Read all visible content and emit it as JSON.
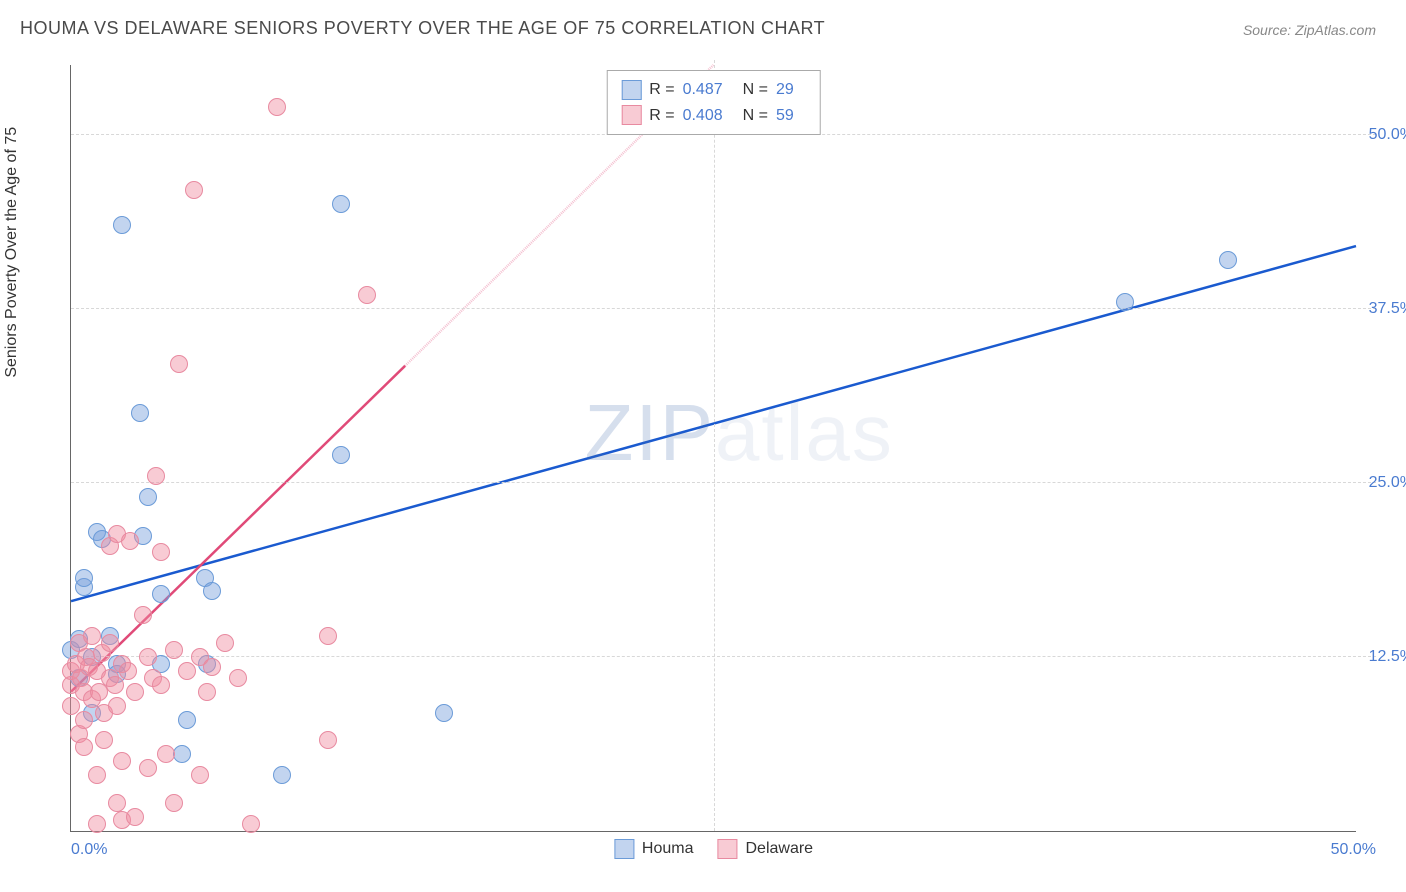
{
  "title": "HOUMA VS DELAWARE SENIORS POVERTY OVER THE AGE OF 75 CORRELATION CHART",
  "source": "Source: ZipAtlas.com",
  "y_axis_label": "Seniors Poverty Over the Age of 75",
  "watermark": {
    "bold": "ZIP",
    "light": "atlas"
  },
  "chart": {
    "type": "scatter",
    "xlim": [
      0,
      50
    ],
    "ylim": [
      0,
      55
    ],
    "x_ticks": [
      {
        "value": 0,
        "label": "0.0%",
        "pos": "left"
      },
      {
        "value": 50,
        "label": "50.0%",
        "pos": "right"
      }
    ],
    "y_ticks": [
      {
        "value": 12.5,
        "label": "12.5%"
      },
      {
        "value": 25.0,
        "label": "25.0%"
      },
      {
        "value": 37.5,
        "label": "37.5%"
      },
      {
        "value": 50.0,
        "label": "50.0%"
      }
    ],
    "v_grid_positions": [
      25
    ],
    "background_color": "#ffffff",
    "grid_color": "#d8d8d8",
    "point_radius": 9,
    "series": [
      {
        "name": "Houma",
        "fill_color": "rgba(120,160,220,0.45)",
        "stroke_color": "#6b9bd8",
        "trend": {
          "x1": 0,
          "y1": 16.5,
          "x2": 50,
          "y2": 42.0,
          "color": "#1a5acf",
          "width": 2.5,
          "dash_after_x": null
        },
        "points": [
          [
            0.0,
            13.0
          ],
          [
            0.3,
            13.8
          ],
          [
            0.3,
            11.0
          ],
          [
            0.5,
            17.5
          ],
          [
            0.5,
            18.2
          ],
          [
            0.8,
            12.5
          ],
          [
            0.8,
            8.5
          ],
          [
            1.0,
            21.5
          ],
          [
            1.2,
            21.0
          ],
          [
            1.5,
            14.0
          ],
          [
            1.8,
            12.0
          ],
          [
            1.8,
            11.3
          ],
          [
            2.0,
            43.5
          ],
          [
            2.7,
            30.0
          ],
          [
            2.8,
            21.2
          ],
          [
            3.0,
            24.0
          ],
          [
            3.5,
            12.0
          ],
          [
            3.5,
            17.0
          ],
          [
            4.3,
            5.5
          ],
          [
            4.5,
            8.0
          ],
          [
            5.2,
            18.2
          ],
          [
            5.3,
            12.0
          ],
          [
            5.5,
            17.2
          ],
          [
            8.2,
            4.0
          ],
          [
            10.5,
            45.0
          ],
          [
            10.5,
            27.0
          ],
          [
            14.5,
            8.5
          ],
          [
            41.0,
            38.0
          ],
          [
            45.0,
            41.0
          ]
        ]
      },
      {
        "name": "Delaware",
        "fill_color": "rgba(240,140,160,0.45)",
        "stroke_color": "#e88aa0",
        "trend": {
          "x1": 0,
          "y1": 10.0,
          "x2": 25,
          "y2": 55.0,
          "color": "#e04a78",
          "width": 2.5,
          "dash_after_x": 13
        },
        "points": [
          [
            0.0,
            10.5
          ],
          [
            0.0,
            11.5
          ],
          [
            0.0,
            9.0
          ],
          [
            0.2,
            12.0
          ],
          [
            0.3,
            7.0
          ],
          [
            0.3,
            13.5
          ],
          [
            0.4,
            11.0
          ],
          [
            0.5,
            10.0
          ],
          [
            0.5,
            8.0
          ],
          [
            0.5,
            6.0
          ],
          [
            0.6,
            12.5
          ],
          [
            0.7,
            11.8
          ],
          [
            0.8,
            9.5
          ],
          [
            0.8,
            14.0
          ],
          [
            1.0,
            11.5
          ],
          [
            1.0,
            4.0
          ],
          [
            1.0,
            0.5
          ],
          [
            1.1,
            10.0
          ],
          [
            1.2,
            12.8
          ],
          [
            1.3,
            8.5
          ],
          [
            1.3,
            6.5
          ],
          [
            1.5,
            11.0
          ],
          [
            1.5,
            13.5
          ],
          [
            1.5,
            20.5
          ],
          [
            1.7,
            10.5
          ],
          [
            1.8,
            9.0
          ],
          [
            1.8,
            21.3
          ],
          [
            1.8,
            2.0
          ],
          [
            2.0,
            12.0
          ],
          [
            2.0,
            5.0
          ],
          [
            2.0,
            0.8
          ],
          [
            2.2,
            11.5
          ],
          [
            2.3,
            20.8
          ],
          [
            2.5,
            10.0
          ],
          [
            2.5,
            1.0
          ],
          [
            2.8,
            15.5
          ],
          [
            3.0,
            12.5
          ],
          [
            3.0,
            4.5
          ],
          [
            3.2,
            11.0
          ],
          [
            3.3,
            25.5
          ],
          [
            3.5,
            10.5
          ],
          [
            3.5,
            20.0
          ],
          [
            3.7,
            5.5
          ],
          [
            4.0,
            13.0
          ],
          [
            4.0,
            2.0
          ],
          [
            4.2,
            33.5
          ],
          [
            4.5,
            11.5
          ],
          [
            4.8,
            46.0
          ],
          [
            5.0,
            4.0
          ],
          [
            5.0,
            12.5
          ],
          [
            5.3,
            10.0
          ],
          [
            5.5,
            11.8
          ],
          [
            6.0,
            13.5
          ],
          [
            6.5,
            11.0
          ],
          [
            7.0,
            0.5
          ],
          [
            8.0,
            52.0
          ],
          [
            10.0,
            14.0
          ],
          [
            10.0,
            6.5
          ],
          [
            11.5,
            38.5
          ]
        ]
      }
    ],
    "legend_top": [
      {
        "swatch_fill": "rgba(120,160,220,0.45)",
        "swatch_stroke": "#6b9bd8",
        "r_label": "R =",
        "r_value": "0.487",
        "n_label": "N =",
        "n_value": "29"
      },
      {
        "swatch_fill": "rgba(240,140,160,0.45)",
        "swatch_stroke": "#e88aa0",
        "r_label": "R =",
        "r_value": "0.408",
        "n_label": "N =",
        "n_value": "59"
      }
    ],
    "legend_bottom": [
      {
        "label": "Houma",
        "fill": "rgba(120,160,220,0.45)",
        "stroke": "#6b9bd8"
      },
      {
        "label": "Delaware",
        "fill": "rgba(240,140,160,0.45)",
        "stroke": "#e88aa0"
      }
    ]
  }
}
